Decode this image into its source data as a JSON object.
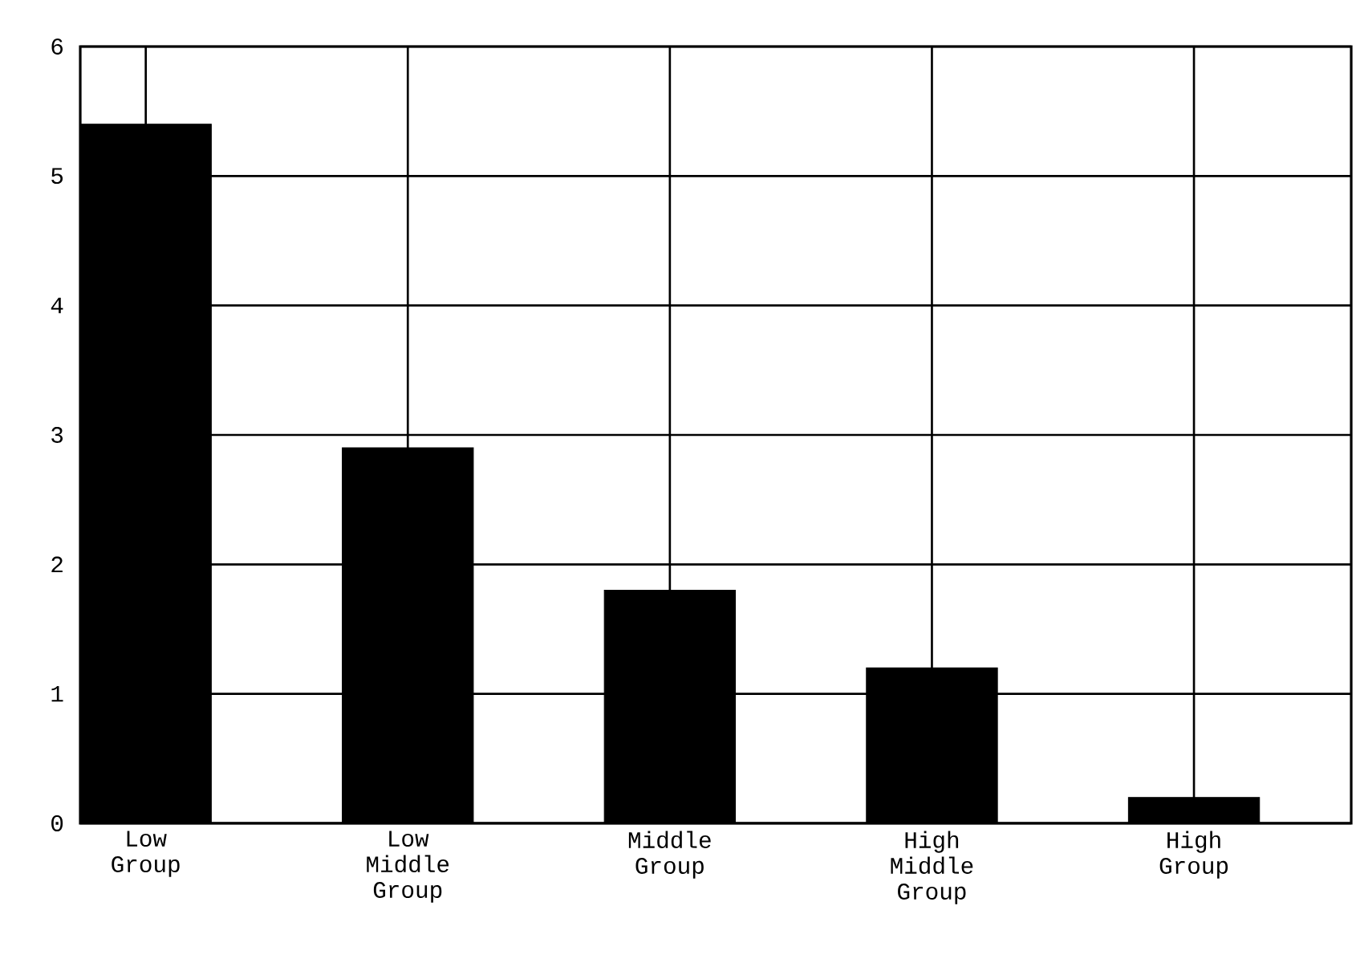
{
  "chart_data": {
    "type": "bar",
    "categories": [
      "Low Group",
      "Low Middle Group",
      "Middle Group",
      "High Middle Group",
      "High Group"
    ],
    "values": [
      5.4,
      2.9,
      1.8,
      1.2,
      0.2
    ],
    "color": "#000000",
    "ylim": [
      0,
      6
    ],
    "yticks": [
      0,
      1,
      2,
      3,
      4,
      5,
      6
    ],
    "grid": true
  }
}
